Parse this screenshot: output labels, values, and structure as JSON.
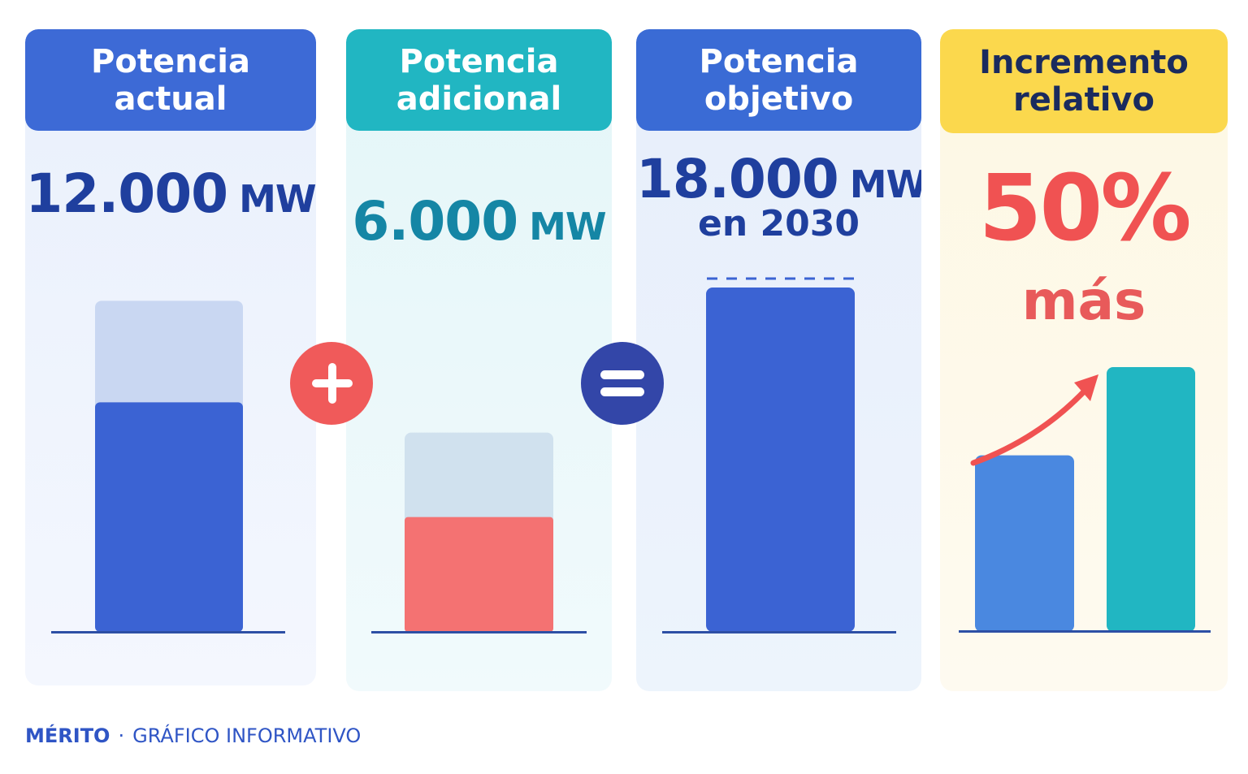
{
  "colors": {
    "blue_dark": "#3b63d3",
    "blue_header": "#3d6ad6",
    "teal": "#21b6c2",
    "yellow": "#fbd84d",
    "coral": "#f47272",
    "red_text": "#f05252",
    "navy_text": "#1f3f9e",
    "teal_text": "#1586a5",
    "light_blue_bar": "#c9d7f2",
    "light_grey_bar": "#d0e1ee",
    "operator_red": "#f05a5a",
    "operator_navy": "#3346a8",
    "bar_light_blue": "#4a88e0"
  },
  "panels": [
    {
      "header_line1": "Potencia",
      "header_line2": "actual",
      "value": "12.000",
      "unit": "MW"
    },
    {
      "header_line1": "Potencia",
      "header_line2": "adicional",
      "value": "6.000",
      "unit": "MW"
    },
    {
      "header_line1": "Potencia",
      "header_line2": "objetivo",
      "value": "18.000",
      "unit": "MW",
      "subtitle": "en 2030"
    },
    {
      "header_line1": "Incremento",
      "header_line2": "relativo",
      "value": "50%",
      "subtitle": "más"
    }
  ],
  "operators": {
    "plus_icon": "plus-icon",
    "equals_icon": "equals-icon"
  },
  "footer": {
    "brand": "MÉRITO",
    "separator": "·",
    "text": "GRÁFICO INFORMATIVO"
  },
  "chart_data": {
    "type": "bar",
    "categories": [
      "Potencia actual",
      "Potencia adicional",
      "Potencia objetivo"
    ],
    "values": [
      12000,
      6000,
      18000
    ],
    "unit": "MW",
    "relative_increase_percent": 50,
    "comparison": {
      "before": 12000,
      "after": 18000
    }
  }
}
